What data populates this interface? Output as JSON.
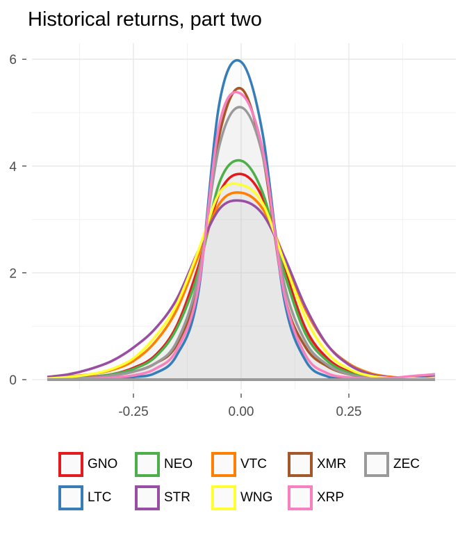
{
  "chart_data": {
    "type": "area",
    "title": "Historical returns, part two",
    "xlabel": "",
    "ylabel": "",
    "xlim": [
      -0.46,
      0.46
    ],
    "ylim": [
      0,
      6
    ],
    "x_ticks": [
      -0.25,
      0.0,
      0.25
    ],
    "x_tick_labels": [
      "-0.25",
      "0.00",
      "0.25"
    ],
    "y_ticks": [
      0,
      2,
      4,
      6
    ],
    "y_tick_labels": [
      "0",
      "2",
      "4",
      "6"
    ],
    "grid": true,
    "legend_position": "bottom",
    "x": [
      -0.45,
      -0.4,
      -0.35,
      -0.3,
      -0.25,
      -0.2,
      -0.15,
      -0.1,
      -0.05,
      0,
      0.05,
      0.1,
      0.15,
      0.2,
      0.25,
      0.3,
      0.35,
      0.4,
      0.45
    ],
    "series": [
      {
        "name": "GNO",
        "color": "#E41A1C",
        "values": [
          0,
          0.02,
          0.05,
          0.1,
          0.22,
          0.45,
          1.0,
          2.1,
          3.5,
          3.85,
          3.4,
          2.1,
          0.95,
          0.4,
          0.15,
          0.05,
          0.02,
          0.01,
          0
        ]
      },
      {
        "name": "NEO",
        "color": "#4DAF4A",
        "values": [
          0,
          0.02,
          0.05,
          0.1,
          0.2,
          0.42,
          0.95,
          2.0,
          3.7,
          4.1,
          3.5,
          2.0,
          0.85,
          0.35,
          0.13,
          0.04,
          0.02,
          0.01,
          0
        ]
      },
      {
        "name": "VTC",
        "color": "#FF7F00",
        "values": [
          0.03,
          0.06,
          0.1,
          0.18,
          0.35,
          0.7,
          1.3,
          2.3,
          3.3,
          3.5,
          3.2,
          2.3,
          1.3,
          0.65,
          0.3,
          0.12,
          0.05,
          0.03,
          0.02
        ]
      },
      {
        "name": "XMR",
        "color": "#A65628",
        "values": [
          0.02,
          0.03,
          0.05,
          0.08,
          0.15,
          0.3,
          0.65,
          1.8,
          4.6,
          5.45,
          4.2,
          1.6,
          0.6,
          0.25,
          0.1,
          0.04,
          0.02,
          0.01,
          0
        ]
      },
      {
        "name": "ZEC",
        "color": "#999999",
        "values": [
          0,
          0.02,
          0.04,
          0.08,
          0.15,
          0.3,
          0.7,
          1.9,
          4.4,
          5.1,
          4.2,
          1.8,
          0.7,
          0.28,
          0.1,
          0.04,
          0.02,
          0.01,
          0
        ]
      },
      {
        "name": "LTC",
        "color": "#377EB8",
        "values": [
          0,
          0.01,
          0.02,
          0.03,
          0.05,
          0.12,
          0.45,
          1.6,
          5.2,
          5.95,
          4.6,
          1.5,
          0.35,
          0.06,
          0.02,
          0.01,
          0.02,
          0.05,
          0.08
        ]
      },
      {
        "name": "STR",
        "color": "#984EA3",
        "values": [
          0.05,
          0.1,
          0.2,
          0.35,
          0.6,
          0.95,
          1.5,
          2.4,
          3.2,
          3.35,
          3.1,
          2.3,
          1.35,
          0.65,
          0.28,
          0.1,
          0.04,
          0.06,
          0.1
        ]
      },
      {
        "name": "WNG",
        "color": "#FFFF33",
        "values": [
          0.02,
          0.05,
          0.1,
          0.2,
          0.4,
          0.8,
          1.4,
          2.4,
          3.5,
          3.65,
          3.3,
          2.2,
          1.15,
          0.5,
          0.2,
          0.07,
          0.03,
          0.02,
          0.01
        ]
      },
      {
        "name": "XRP",
        "color": "#F781BF",
        "values": [
          0,
          0.01,
          0.02,
          0.04,
          0.08,
          0.2,
          0.55,
          1.7,
          4.8,
          5.35,
          4.3,
          1.6,
          0.45,
          0.12,
          0.04,
          0.02,
          0.03,
          0.07,
          0.1
        ]
      }
    ]
  }
}
